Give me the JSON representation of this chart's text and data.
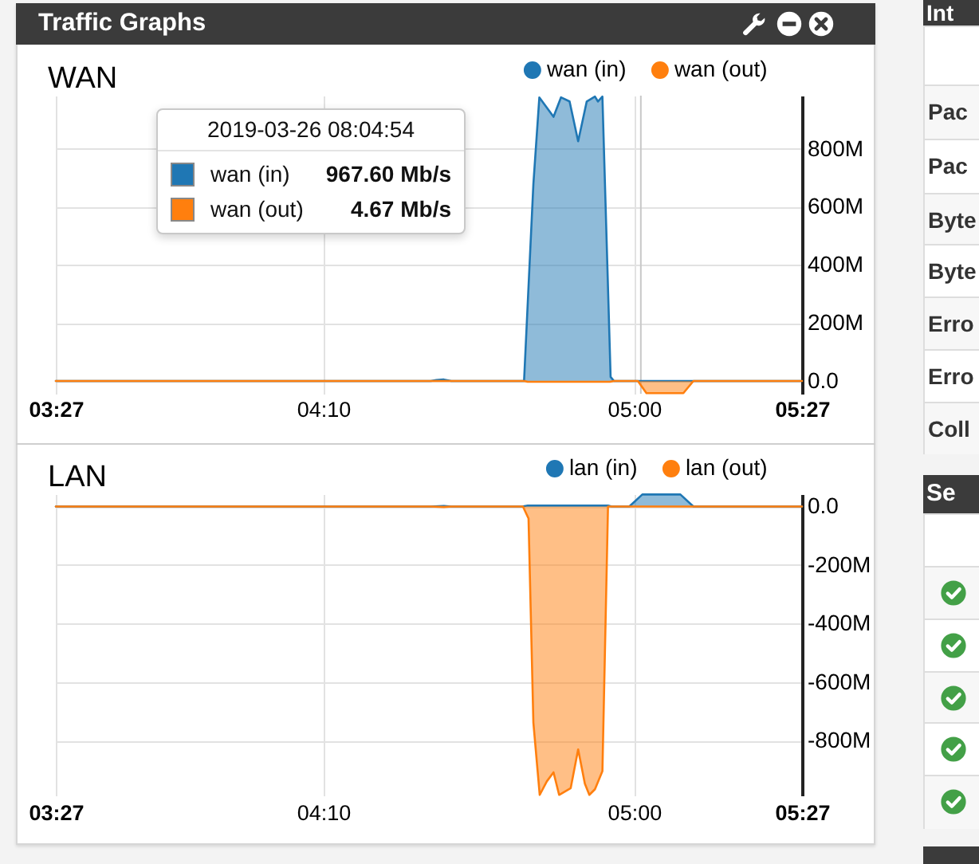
{
  "chart_data": [
    {
      "type": "area",
      "title": "WAN",
      "series": [
        {
          "name": "wan (in)",
          "color": "#1f77b4",
          "x": [
            3.45,
            4.455,
            4.47,
            4.49,
            4.51,
            4.705,
            4.73,
            4.746,
            4.784,
            4.804,
            4.827,
            4.85,
            4.873,
            4.895,
            4.903,
            4.915,
            4.937,
            4.946,
            5.45
          ],
          "values": [
            0,
            0,
            3,
            5,
            0,
            0,
            678,
            977,
            910,
            977,
            963,
            826,
            963,
            980,
            963,
            980,
            14,
            0,
            0
          ]
        },
        {
          "name": "wan (out)",
          "color": "#ff7f0e",
          "x": [
            3.45,
            4.705,
            4.715,
            4.935,
            4.946,
            5.01,
            5.033,
            5.132,
            5.159,
            5.45
          ],
          "values": [
            0,
            0,
            -3,
            -3,
            0,
            0,
            -42,
            -42,
            0,
            0
          ]
        }
      ],
      "xlim": [
        3.45,
        5.45
      ],
      "xticks": [
        {
          "value": 3.45,
          "label": "03:27"
        },
        {
          "value": 4.167,
          "label": "04:10"
        },
        {
          "value": 5,
          "label": "05:00"
        },
        {
          "value": 5.45,
          "label": "05:27"
        }
      ],
      "ylim": [
        -44,
        983
      ],
      "yticks": [
        {
          "value": 0,
          "label": "0.0"
        },
        {
          "value": 200,
          "label": "200M"
        },
        {
          "value": 400,
          "label": "400M"
        },
        {
          "value": 600,
          "label": "600M"
        },
        {
          "value": 800,
          "label": "800M"
        }
      ],
      "grid": true,
      "legend": "top right",
      "ref_lines": [
        {
          "axis": "x",
          "value": 5.018,
          "color": "#c8c8c8"
        }
      ],
      "annotations": [
        "Traffic Graphs",
        "2019-03-26 08:04:54",
        "wan (in)",
        "967.60 Mb/s",
        "wan (out)",
        "4.67 Mb/s",
        "Int",
        "Pac",
        "Pac",
        "Byte",
        "Byte",
        "Erro",
        "Erro",
        "Coll",
        "Se"
      ]
    },
    {
      "type": "area",
      "title": "LAN",
      "series": [
        {
          "name": "lan (in)",
          "color": "#1f77b4",
          "x": [
            3.45,
            4.455,
            4.49,
            4.51,
            4.7,
            4.715,
            4.93,
            4.94,
            4.987,
            5.022,
            5.124,
            5.159,
            5.45
          ],
          "values": [
            0,
            0,
            2,
            0,
            0,
            3,
            3,
            0,
            0,
            41,
            41,
            0,
            0
          ]
        },
        {
          "name": "lan (out)",
          "color": "#ff7f0e",
          "x": [
            3.45,
            4.455,
            4.49,
            4.51,
            4.702,
            4.717,
            4.73,
            4.747,
            4.766,
            4.784,
            4.799,
            4.83,
            4.85,
            4.868,
            4.88,
            4.895,
            4.915,
            4.93,
            5.45
          ],
          "values": [
            0,
            0,
            -2,
            0,
            0,
            -41,
            -738,
            -985,
            -939,
            -908,
            -985,
            -962,
            -830,
            -947,
            -985,
            -966,
            -904,
            0,
            0
          ]
        }
      ],
      "xlim": [
        3.45,
        5.45
      ],
      "xticks": [
        {
          "value": 3.45,
          "label": "03:27"
        },
        {
          "value": 4.167,
          "label": "04:10"
        },
        {
          "value": 5,
          "label": "05:00"
        },
        {
          "value": 5.45,
          "label": "05:27"
        }
      ],
      "ylim": [
        -987,
        42
      ],
      "yticks": [
        {
          "value": 0,
          "label": "0.0"
        },
        {
          "value": -200,
          "label": "-200M"
        },
        {
          "value": -400,
          "label": "-400M"
        },
        {
          "value": -600,
          "label": "-600M"
        },
        {
          "value": -800,
          "label": "-800M"
        }
      ],
      "grid": true,
      "legend": "top right"
    }
  ]
}
